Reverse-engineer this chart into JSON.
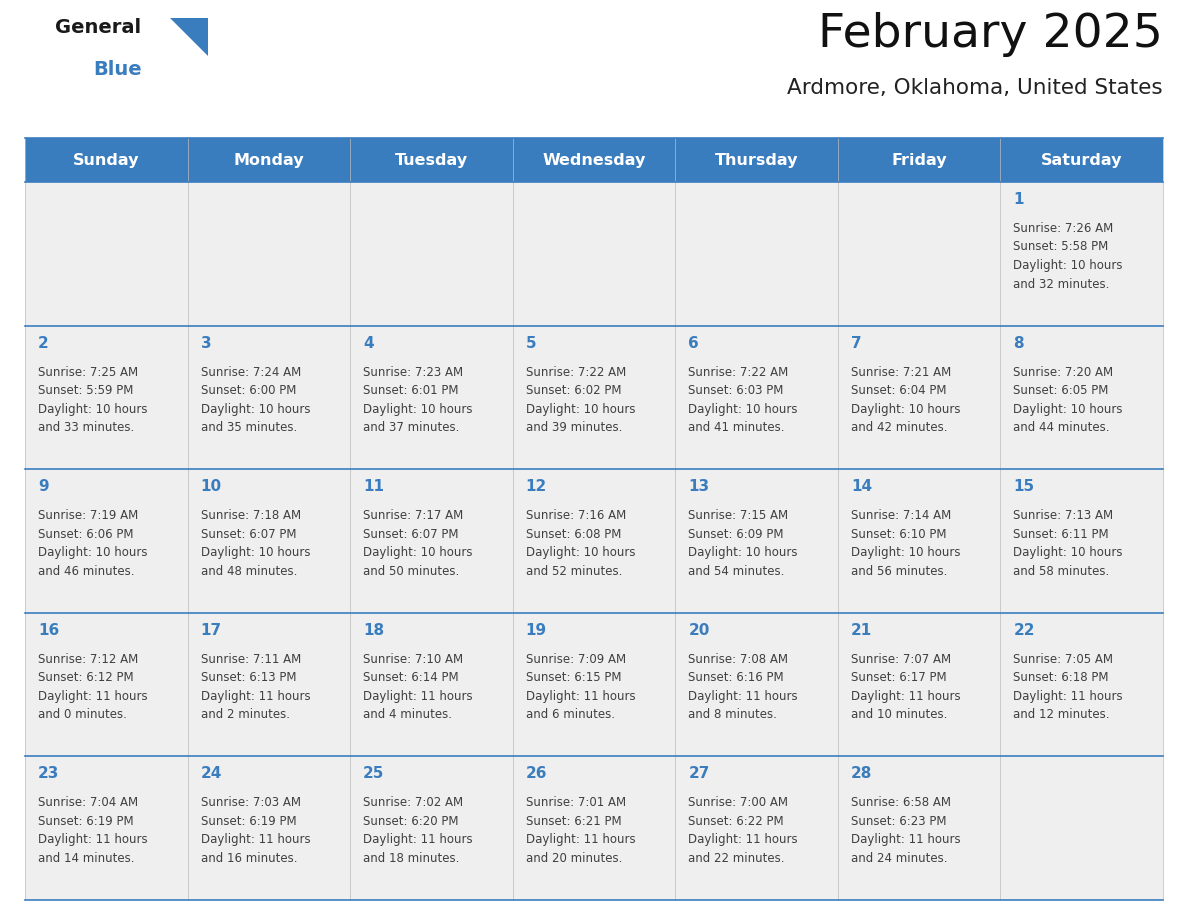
{
  "title": "February 2025",
  "subtitle": "Ardmore, Oklahoma, United States",
  "header_color": "#3a7dbf",
  "header_text_color": "#ffffff",
  "day_names": [
    "Sunday",
    "Monday",
    "Tuesday",
    "Wednesday",
    "Thursday",
    "Friday",
    "Saturday"
  ],
  "bg_color": "#ffffff",
  "cell_bg": "#efefef",
  "border_color": "#3a7dbf",
  "number_color": "#3a7dbf",
  "text_color": "#404040",
  "logo_general_color": "#1a1a1a",
  "logo_blue_color": "#3a7dbf",
  "logo_triangle_color": "#3a7dbf",
  "days": [
    {
      "day": 1,
      "col": 6,
      "row": 0,
      "sunrise": "7:26 AM",
      "sunset": "5:58 PM",
      "daylight": "10 hours and 32 minutes."
    },
    {
      "day": 2,
      "col": 0,
      "row": 1,
      "sunrise": "7:25 AM",
      "sunset": "5:59 PM",
      "daylight": "10 hours and 33 minutes."
    },
    {
      "day": 3,
      "col": 1,
      "row": 1,
      "sunrise": "7:24 AM",
      "sunset": "6:00 PM",
      "daylight": "10 hours and 35 minutes."
    },
    {
      "day": 4,
      "col": 2,
      "row": 1,
      "sunrise": "7:23 AM",
      "sunset": "6:01 PM",
      "daylight": "10 hours and 37 minutes."
    },
    {
      "day": 5,
      "col": 3,
      "row": 1,
      "sunrise": "7:22 AM",
      "sunset": "6:02 PM",
      "daylight": "10 hours and 39 minutes."
    },
    {
      "day": 6,
      "col": 4,
      "row": 1,
      "sunrise": "7:22 AM",
      "sunset": "6:03 PM",
      "daylight": "10 hours and 41 minutes."
    },
    {
      "day": 7,
      "col": 5,
      "row": 1,
      "sunrise": "7:21 AM",
      "sunset": "6:04 PM",
      "daylight": "10 hours and 42 minutes."
    },
    {
      "day": 8,
      "col": 6,
      "row": 1,
      "sunrise": "7:20 AM",
      "sunset": "6:05 PM",
      "daylight": "10 hours and 44 minutes."
    },
    {
      "day": 9,
      "col": 0,
      "row": 2,
      "sunrise": "7:19 AM",
      "sunset": "6:06 PM",
      "daylight": "10 hours and 46 minutes."
    },
    {
      "day": 10,
      "col": 1,
      "row": 2,
      "sunrise": "7:18 AM",
      "sunset": "6:07 PM",
      "daylight": "10 hours and 48 minutes."
    },
    {
      "day": 11,
      "col": 2,
      "row": 2,
      "sunrise": "7:17 AM",
      "sunset": "6:07 PM",
      "daylight": "10 hours and 50 minutes."
    },
    {
      "day": 12,
      "col": 3,
      "row": 2,
      "sunrise": "7:16 AM",
      "sunset": "6:08 PM",
      "daylight": "10 hours and 52 minutes."
    },
    {
      "day": 13,
      "col": 4,
      "row": 2,
      "sunrise": "7:15 AM",
      "sunset": "6:09 PM",
      "daylight": "10 hours and 54 minutes."
    },
    {
      "day": 14,
      "col": 5,
      "row": 2,
      "sunrise": "7:14 AM",
      "sunset": "6:10 PM",
      "daylight": "10 hours and 56 minutes."
    },
    {
      "day": 15,
      "col": 6,
      "row": 2,
      "sunrise": "7:13 AM",
      "sunset": "6:11 PM",
      "daylight": "10 hours and 58 minutes."
    },
    {
      "day": 16,
      "col": 0,
      "row": 3,
      "sunrise": "7:12 AM",
      "sunset": "6:12 PM",
      "daylight": "11 hours and 0 minutes."
    },
    {
      "day": 17,
      "col": 1,
      "row": 3,
      "sunrise": "7:11 AM",
      "sunset": "6:13 PM",
      "daylight": "11 hours and 2 minutes."
    },
    {
      "day": 18,
      "col": 2,
      "row": 3,
      "sunrise": "7:10 AM",
      "sunset": "6:14 PM",
      "daylight": "11 hours and 4 minutes."
    },
    {
      "day": 19,
      "col": 3,
      "row": 3,
      "sunrise": "7:09 AM",
      "sunset": "6:15 PM",
      "daylight": "11 hours and 6 minutes."
    },
    {
      "day": 20,
      "col": 4,
      "row": 3,
      "sunrise": "7:08 AM",
      "sunset": "6:16 PM",
      "daylight": "11 hours and 8 minutes."
    },
    {
      "day": 21,
      "col": 5,
      "row": 3,
      "sunrise": "7:07 AM",
      "sunset": "6:17 PM",
      "daylight": "11 hours and 10 minutes."
    },
    {
      "day": 22,
      "col": 6,
      "row": 3,
      "sunrise": "7:05 AM",
      "sunset": "6:18 PM",
      "daylight": "11 hours and 12 minutes."
    },
    {
      "day": 23,
      "col": 0,
      "row": 4,
      "sunrise": "7:04 AM",
      "sunset": "6:19 PM",
      "daylight": "11 hours and 14 minutes."
    },
    {
      "day": 24,
      "col": 1,
      "row": 4,
      "sunrise": "7:03 AM",
      "sunset": "6:19 PM",
      "daylight": "11 hours and 16 minutes."
    },
    {
      "day": 25,
      "col": 2,
      "row": 4,
      "sunrise": "7:02 AM",
      "sunset": "6:20 PM",
      "daylight": "11 hours and 18 minutes."
    },
    {
      "day": 26,
      "col": 3,
      "row": 4,
      "sunrise": "7:01 AM",
      "sunset": "6:21 PM",
      "daylight": "11 hours and 20 minutes."
    },
    {
      "day": 27,
      "col": 4,
      "row": 4,
      "sunrise": "7:00 AM",
      "sunset": "6:22 PM",
      "daylight": "11 hours and 22 minutes."
    },
    {
      "day": 28,
      "col": 5,
      "row": 4,
      "sunrise": "6:58 AM",
      "sunset": "6:23 PM",
      "daylight": "11 hours and 24 minutes."
    }
  ]
}
